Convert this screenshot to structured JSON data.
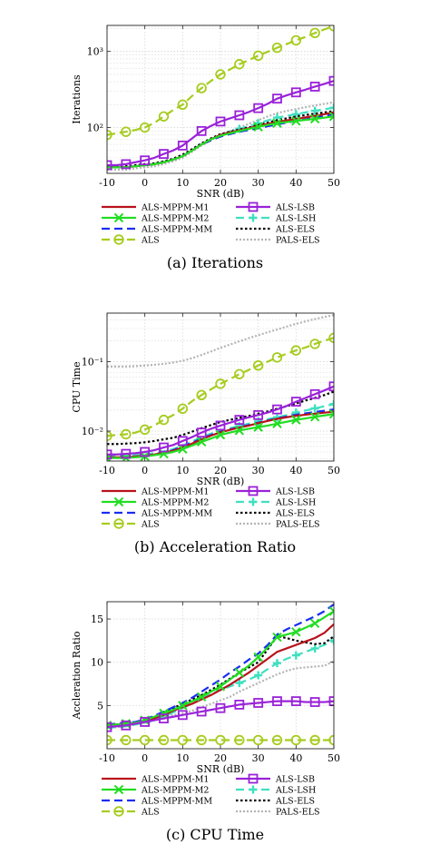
{
  "series_styles": [
    {
      "name": "ALS-MPPM-M1",
      "color": "#b8121b",
      "dash": "",
      "marker": "none",
      "width": 2.2
    },
    {
      "name": "ALS-MPPM-M2",
      "color": "#22dd22",
      "dash": "",
      "marker": "x",
      "width": 2.2
    },
    {
      "name": "ALS-MPPM-MM",
      "color": "#1a2ef0",
      "dash": "9 5",
      "marker": "none",
      "width": 2.2
    },
    {
      "name": "ALS",
      "color": "#a6cc1f",
      "dash": "9 5",
      "marker": "circle",
      "width": 2.2
    },
    {
      "name": "ALS-LSB",
      "color": "#9a22d8",
      "dash": "",
      "marker": "square",
      "width": 2.2
    },
    {
      "name": "ALS-LSH",
      "color": "#3fe0c0",
      "dash": "9 5",
      "marker": "plus",
      "width": 2.2
    },
    {
      "name": "ALS-ELS",
      "color": "#000000",
      "dash": "2.5 2.5",
      "marker": "none",
      "width": 2.2
    },
    {
      "name": "PALS-ELS",
      "color": "#b4b4b4",
      "dash": "2 2",
      "marker": "none",
      "width": 2.2
    }
  ],
  "chart_data": [
    {
      "type": "line",
      "caption": "(a) Iterations",
      "xlabel": "SNR (dB)",
      "ylabel": "Iterations",
      "xscale": "linear",
      "yscale": "log",
      "xlim": [
        -10,
        50
      ],
      "ylim": [
        25,
        2200
      ],
      "xticks": [
        -10,
        0,
        10,
        20,
        30,
        40,
        50
      ],
      "yticks": [
        {
          "value": 100,
          "label": "10²"
        },
        {
          "value": 1000,
          "label": "10³"
        }
      ],
      "grid": true,
      "x": [
        -10,
        -7.5,
        -5,
        -2.5,
        0,
        2.5,
        5,
        7.5,
        10,
        12.5,
        15,
        17.5,
        20,
        22.5,
        25,
        27.5,
        30,
        32.5,
        35,
        37.5,
        40,
        42.5,
        45,
        47.5,
        50
      ],
      "series": [
        {
          "name": "ALS-MPPM-M1",
          "values": [
            30,
            30,
            30,
            31,
            32,
            33,
            35,
            38,
            42,
            50,
            60,
            70,
            80,
            86,
            92,
            98,
            105,
            112,
            118,
            124,
            130,
            136,
            142,
            150,
            158
          ]
        },
        {
          "name": "ALS-MPPM-M2",
          "values": [
            30,
            30,
            30,
            31,
            32,
            33,
            35,
            38,
            42,
            50,
            60,
            70,
            78,
            84,
            90,
            96,
            102,
            108,
            114,
            118,
            122,
            126,
            130,
            135,
            140
          ]
        },
        {
          "name": "ALS-MPPM-MM",
          "values": [
            30,
            30,
            30,
            31,
            32,
            33,
            35,
            38,
            42,
            50,
            60,
            68,
            76,
            82,
            88,
            93,
            98,
            104,
            110,
            116,
            122,
            128,
            135,
            142,
            150
          ]
        },
        {
          "name": "ALS",
          "values": [
            80,
            84,
            88,
            93,
            100,
            115,
            140,
            170,
            200,
            260,
            330,
            410,
            500,
            580,
            680,
            770,
            880,
            990,
            1120,
            1250,
            1400,
            1550,
            1750,
            1950,
            2150
          ]
        },
        {
          "name": "ALS-LSB",
          "values": [
            32,
            32,
            33,
            35,
            37,
            40,
            45,
            50,
            58,
            72,
            90,
            105,
            120,
            132,
            145,
            160,
            180,
            205,
            240,
            265,
            290,
            315,
            345,
            375,
            410
          ]
        },
        {
          "name": "ALS-LSH",
          "values": [
            30,
            30,
            30,
            31,
            32,
            33,
            35,
            38,
            42,
            50,
            60,
            70,
            80,
            88,
            96,
            104,
            114,
            124,
            135,
            142,
            150,
            158,
            166,
            174,
            182
          ]
        },
        {
          "name": "ALS-ELS",
          "values": [
            31,
            31,
            31,
            32,
            33,
            34,
            36,
            39,
            44,
            52,
            62,
            72,
            82,
            88,
            94,
            100,
            108,
            116,
            125,
            132,
            140,
            146,
            152,
            158,
            165
          ]
        },
        {
          "name": "PALS-ELS",
          "values": [
            28,
            28,
            28,
            29,
            30,
            31,
            33,
            36,
            40,
            48,
            58,
            68,
            80,
            90,
            100,
            112,
            125,
            140,
            155,
            165,
            175,
            185,
            195,
            205,
            215
          ]
        }
      ],
      "markers": {
        "ALS": [
          -10,
          -5,
          0,
          5,
          10,
          15,
          20,
          25,
          30,
          35,
          40,
          45,
          50
        ],
        "ALS-LSB": [
          -10,
          -5,
          0,
          5,
          10,
          15,
          20,
          25,
          30,
          35,
          40,
          45,
          50
        ],
        "ALS-LSH": [
          25,
          30,
          35,
          40,
          45,
          50
        ],
        "ALS-MPPM-M2": [
          30,
          35,
          40,
          45,
          50
        ]
      }
    },
    {
      "type": "line",
      "caption": "(b) Acceleration Ratio",
      "xlabel": "SNR (dB)",
      "ylabel": "CPU Time",
      "xscale": "linear",
      "yscale": "log",
      "xlim": [
        -10,
        50
      ],
      "ylim": [
        0.0037,
        0.5
      ],
      "xticks": [
        -10,
        0,
        10,
        20,
        30,
        40,
        50
      ],
      "yticks": [
        {
          "value": 0.01,
          "label": "10⁻²"
        },
        {
          "value": 0.1,
          "label": "10⁻¹"
        }
      ],
      "grid": true,
      "x": [
        -10,
        -7.5,
        -5,
        -2.5,
        0,
        2.5,
        5,
        7.5,
        10,
        12.5,
        15,
        17.5,
        20,
        22.5,
        25,
        27.5,
        30,
        32.5,
        35,
        37.5,
        40,
        42.5,
        45,
        47.5,
        50
      ],
      "series": [
        {
          "name": "ALS-MPPM-M1",
          "values": [
            0.0042,
            0.0042,
            0.0042,
            0.0043,
            0.0044,
            0.0046,
            0.0049,
            0.0052,
            0.0058,
            0.0066,
            0.0076,
            0.0086,
            0.0096,
            0.0104,
            0.0112,
            0.012,
            0.013,
            0.014,
            0.015,
            0.0158,
            0.0166,
            0.0172,
            0.0178,
            0.0184,
            0.019
          ]
        },
        {
          "name": "ALS-MPPM-M2",
          "values": [
            0.0041,
            0.0041,
            0.0041,
            0.0042,
            0.0043,
            0.0045,
            0.0047,
            0.005,
            0.0055,
            0.0062,
            0.007,
            0.0078,
            0.0088,
            0.0095,
            0.0102,
            0.0108,
            0.0114,
            0.012,
            0.0128,
            0.0136,
            0.0145,
            0.0152,
            0.016,
            0.0168,
            0.0176
          ]
        },
        {
          "name": "ALS-MPPM-MM",
          "values": [
            0.0042,
            0.0042,
            0.0042,
            0.0043,
            0.0044,
            0.0046,
            0.0049,
            0.0053,
            0.006,
            0.0068,
            0.0078,
            0.0088,
            0.0098,
            0.0106,
            0.0114,
            0.0122,
            0.0132,
            0.0142,
            0.0152,
            0.0162,
            0.0172,
            0.018,
            0.0188,
            0.0196,
            0.0205
          ]
        },
        {
          "name": "ALS",
          "values": [
            0.0085,
            0.0088,
            0.009,
            0.0095,
            0.0105,
            0.012,
            0.0145,
            0.017,
            0.021,
            0.027,
            0.033,
            0.04,
            0.048,
            0.056,
            0.066,
            0.076,
            0.088,
            0.1,
            0.115,
            0.13,
            0.145,
            0.16,
            0.18,
            0.2,
            0.22
          ]
        },
        {
          "name": "ALS-LSB",
          "values": [
            0.0046,
            0.0046,
            0.0047,
            0.0048,
            0.005,
            0.0053,
            0.0058,
            0.0063,
            0.0072,
            0.0082,
            0.0095,
            0.0108,
            0.012,
            0.0132,
            0.0145,
            0.0158,
            0.017,
            0.0185,
            0.0205,
            0.023,
            0.0265,
            0.03,
            0.034,
            0.0385,
            0.044
          ]
        },
        {
          "name": "ALS-LSH",
          "values": [
            0.0044,
            0.0044,
            0.0044,
            0.0045,
            0.0046,
            0.0048,
            0.0051,
            0.0055,
            0.0062,
            0.0071,
            0.0082,
            0.0092,
            0.0102,
            0.011,
            0.0118,
            0.0128,
            0.0138,
            0.0148,
            0.0158,
            0.017,
            0.0185,
            0.0198,
            0.0212,
            0.0228,
            0.0245
          ]
        },
        {
          "name": "ALS-ELS",
          "values": [
            0.0065,
            0.0065,
            0.0066,
            0.0067,
            0.0069,
            0.0072,
            0.0076,
            0.008,
            0.0088,
            0.0098,
            0.011,
            0.0122,
            0.0135,
            0.0145,
            0.0155,
            0.0165,
            0.0178,
            0.0192,
            0.021,
            0.0228,
            0.025,
            0.0275,
            0.03,
            0.033,
            0.037
          ]
        },
        {
          "name": "PALS-ELS",
          "values": [
            0.085,
            0.085,
            0.085,
            0.086,
            0.088,
            0.09,
            0.093,
            0.097,
            0.103,
            0.112,
            0.125,
            0.14,
            0.158,
            0.176,
            0.196,
            0.218,
            0.24,
            0.265,
            0.29,
            0.32,
            0.35,
            0.38,
            0.41,
            0.44,
            0.47
          ]
        }
      ],
      "markers": {
        "ALS": [
          -10,
          -5,
          0,
          5,
          10,
          15,
          20,
          25,
          30,
          35,
          40,
          45,
          50
        ],
        "ALS-LSB": [
          -10,
          -5,
          0,
          5,
          10,
          15,
          20,
          25,
          30,
          35,
          40,
          45,
          50
        ],
        "ALS-LSH": [
          25,
          30,
          35,
          40,
          45,
          50
        ],
        "ALS-MPPM-M2": [
          -10,
          -5,
          0,
          5,
          10,
          15,
          20,
          25,
          30,
          35,
          40,
          45,
          50
        ]
      }
    },
    {
      "type": "line",
      "caption": "(c) CPU Time",
      "xlabel": "SNR (dB)",
      "ylabel": "Accleration Ratio",
      "xscale": "linear",
      "yscale": "linear",
      "xlim": [
        -10,
        50
      ],
      "ylim": [
        0,
        17
      ],
      "xticks": [
        -10,
        0,
        10,
        20,
        30,
        40,
        50
      ],
      "yticks": [
        {
          "value": 5,
          "label": "5"
        },
        {
          "value": 10,
          "label": "10"
        },
        {
          "value": 15,
          "label": "15"
        }
      ],
      "grid": true,
      "x": [
        -10,
        -7.5,
        -5,
        -2.5,
        0,
        2.5,
        5,
        7.5,
        10,
        12.5,
        15,
        17.5,
        20,
        22.5,
        25,
        27.5,
        30,
        32.5,
        35,
        37.5,
        40,
        42.5,
        45,
        47.5,
        50
      ],
      "series": [
        {
          "name": "ALS-MPPM-M1",
          "values": [
            2.7,
            2.8,
            2.9,
            3.0,
            3.2,
            3.5,
            3.9,
            4.4,
            4.8,
            5.2,
            5.7,
            6.2,
            6.8,
            7.4,
            8.1,
            8.8,
            9.6,
            10.4,
            11.2,
            11.6,
            12.0,
            12.4,
            12.8,
            13.4,
            14.4
          ]
        },
        {
          "name": "ALS-MPPM-M2",
          "values": [
            2.7,
            2.8,
            2.9,
            3.0,
            3.3,
            3.7,
            4.1,
            4.5,
            5.0,
            5.5,
            6.0,
            6.6,
            7.2,
            8.0,
            8.8,
            9.6,
            10.6,
            11.7,
            12.9,
            13.2,
            13.5,
            14.0,
            14.5,
            15.2,
            15.9
          ]
        },
        {
          "name": "ALS-MPPM-MM",
          "values": [
            2.8,
            2.9,
            3.0,
            3.1,
            3.4,
            3.8,
            4.3,
            4.8,
            5.3,
            5.9,
            6.6,
            7.3,
            8.0,
            8.8,
            9.5,
            10.3,
            11.0,
            12.0,
            13.2,
            13.8,
            14.3,
            14.8,
            15.3,
            15.9,
            16.7
          ]
        },
        {
          "name": "ALS",
          "values": [
            1.0,
            1.0,
            1.0,
            1.0,
            1.0,
            1.0,
            1.0,
            1.0,
            1.0,
            1.0,
            1.0,
            1.0,
            1.0,
            1.0,
            1.0,
            1.0,
            1.0,
            1.0,
            1.0,
            1.0,
            1.0,
            1.0,
            1.0,
            1.0,
            1.0
          ]
        },
        {
          "name": "ALS-LSB",
          "values": [
            2.5,
            2.6,
            2.7,
            2.9,
            3.1,
            3.3,
            3.5,
            3.7,
            3.9,
            4.1,
            4.3,
            4.5,
            4.7,
            4.9,
            5.1,
            5.2,
            5.3,
            5.4,
            5.5,
            5.5,
            5.5,
            5.4,
            5.4,
            5.4,
            5.5
          ]
        },
        {
          "name": "ALS-LSH",
          "values": [
            2.4,
            2.5,
            2.6,
            2.8,
            3.0,
            3.3,
            3.7,
            4.2,
            4.7,
            5.2,
            5.8,
            6.3,
            6.8,
            7.2,
            7.6,
            8.0,
            8.5,
            9.2,
            9.9,
            10.4,
            10.8,
            11.2,
            11.6,
            12.0,
            12.5
          ]
        },
        {
          "name": "ALS-ELS",
          "values": [
            2.7,
            2.8,
            2.9,
            3.0,
            3.3,
            3.7,
            4.2,
            4.7,
            5.2,
            5.7,
            6.2,
            6.8,
            7.4,
            8.1,
            8.8,
            9.4,
            10.0,
            11.5,
            13.0,
            12.8,
            12.5,
            12.3,
            12.1,
            12.2,
            13.0
          ]
        },
        {
          "name": "PALS-ELS",
          "values": [
            2.4,
            2.5,
            2.6,
            2.8,
            3.0,
            3.3,
            3.6,
            3.9,
            4.1,
            4.4,
            4.8,
            5.2,
            5.6,
            6.0,
            6.6,
            7.1,
            7.6,
            8.1,
            8.6,
            9.0,
            9.3,
            9.4,
            9.5,
            9.6,
            10.1
          ]
        }
      ],
      "markers": {
        "ALS": [
          -10,
          -5,
          0,
          5,
          10,
          15,
          20,
          25,
          30,
          35,
          40,
          45,
          50
        ],
        "ALS-LSB": [
          -10,
          -5,
          0,
          5,
          10,
          15,
          20,
          25,
          30,
          35,
          40,
          45,
          50
        ],
        "ALS-LSH": [
          25,
          30,
          35,
          40,
          45,
          50
        ],
        "ALS-MPPM-M2": [
          -10,
          -5,
          0,
          5,
          10,
          15,
          20,
          25,
          30,
          35,
          40,
          45,
          50
        ]
      }
    }
  ],
  "legend": {
    "rows": [
      [
        "ALS-MPPM-M1",
        "ALS-LSB"
      ],
      [
        "ALS-MPPM-M2",
        "ALS-LSH"
      ],
      [
        "ALS-MPPM-MM",
        "ALS-ELS"
      ],
      [
        "ALS",
        "PALS-ELS"
      ]
    ]
  }
}
